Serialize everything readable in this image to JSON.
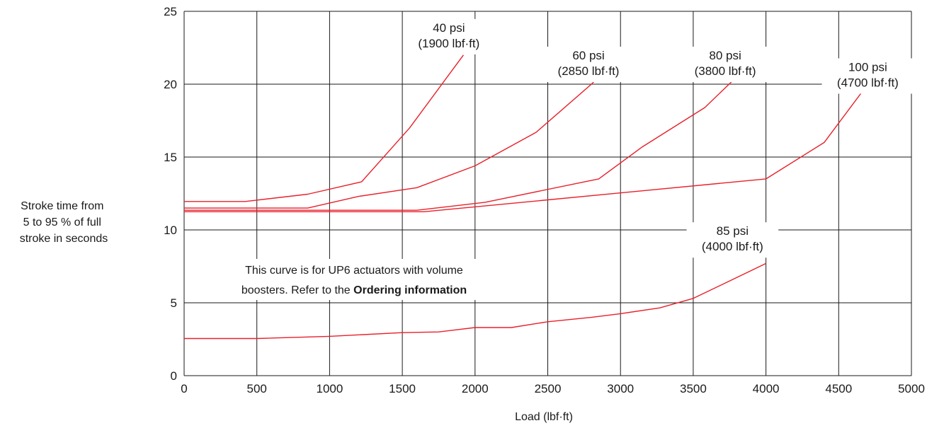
{
  "chart_data": {
    "type": "line",
    "title": "",
    "xlabel": "Load (lbf·ft)",
    "ylabel": [
      "Stroke time from",
      "5 to 95 % of full",
      "stroke in seconds"
    ],
    "xlim": [
      0,
      5000
    ],
    "ylim": [
      0,
      25
    ],
    "x_ticks": [
      "0",
      "500",
      "1000",
      "1500",
      "2000",
      "2500",
      "3000",
      "3500",
      "4000",
      "4500",
      "5000"
    ],
    "y_ticks": [
      "0",
      "5",
      "10",
      "15",
      "20",
      "25"
    ],
    "grid": true,
    "line_color": "#e8202a",
    "series": [
      {
        "label_lines": [
          "40 psi",
          "(1900 lbf·ft)"
        ],
        "x": [
          0,
          420,
          850,
          1220,
          1550,
          1920
        ],
        "y": [
          11.95,
          11.95,
          12.45,
          13.3,
          17.0,
          22.0
        ]
      },
      {
        "label_lines": [
          "60 psi",
          "(2850 lbf·ft)"
        ],
        "x": [
          0,
          850,
          1200,
          1600,
          2000,
          2420,
          2800,
          2900
        ],
        "y": [
          11.5,
          11.5,
          12.3,
          12.9,
          14.4,
          16.7,
          20.0,
          21.0
        ]
      },
      {
        "label_lines": [
          "80 psi",
          "(3800 lbf·ft)"
        ],
        "x": [
          0,
          1600,
          2070,
          2850,
          3150,
          3580,
          3850
        ],
        "y": [
          11.35,
          11.35,
          11.9,
          13.5,
          15.7,
          18.4,
          21.0
        ]
      },
      {
        "label_lines": [
          "100 psi",
          "(4700 lbf·ft)"
        ],
        "x": [
          0,
          1650,
          4000,
          4400,
          4700
        ],
        "y": [
          11.25,
          11.25,
          13.5,
          16.0,
          20.0
        ]
      },
      {
        "label_lines": [
          "85 psi",
          "(4000 lbf·ft)"
        ],
        "x": [
          0,
          500,
          1000,
          1500,
          1750,
          2000,
          2250,
          2500,
          2800,
          3000,
          3270,
          3500,
          3750,
          4000
        ],
        "y": [
          2.55,
          2.55,
          2.7,
          2.95,
          3.0,
          3.3,
          3.3,
          3.7,
          4.0,
          4.25,
          4.65,
          5.3,
          6.5,
          7.7
        ]
      }
    ],
    "annotation": {
      "line1": "This curve is for UP6 actuators with volume",
      "line2_prefix": "boosters. Refer to the ",
      "line2_bold": "Ordering information"
    }
  }
}
